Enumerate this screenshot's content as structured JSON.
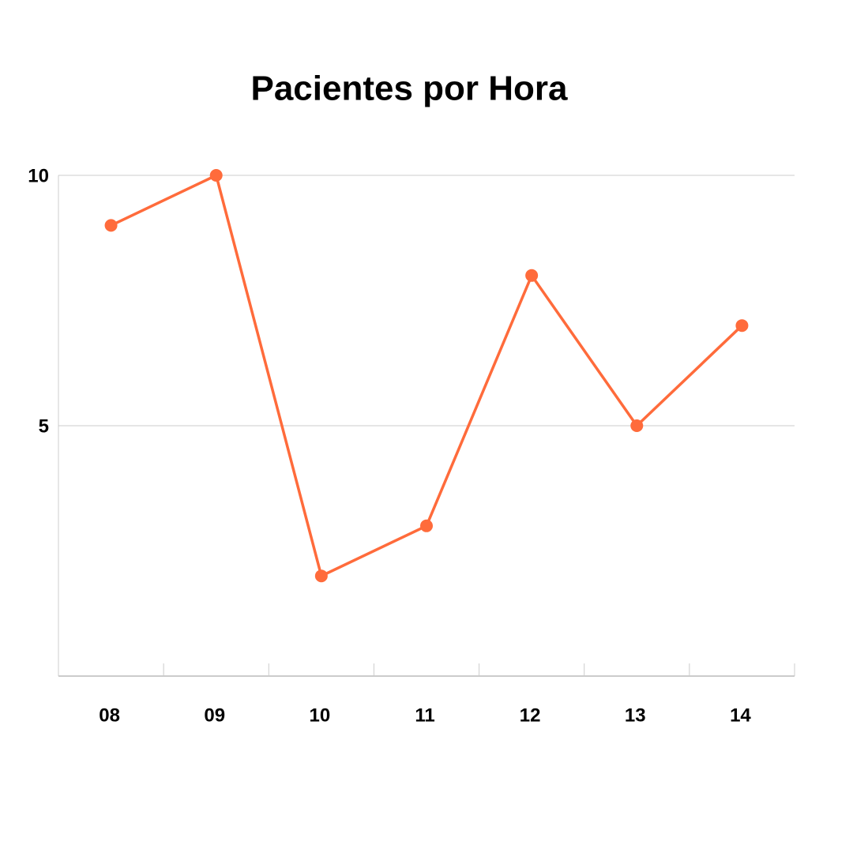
{
  "chart_data": {
    "type": "line",
    "title": "Pacientes por Hora",
    "categories": [
      "08",
      "09",
      "10",
      "11",
      "12",
      "13",
      "14"
    ],
    "series": [
      {
        "name": "Pacientes",
        "color": "#ff6b3b",
        "values": [
          9,
          10,
          2,
          3,
          8,
          5,
          7
        ]
      }
    ],
    "ylim": [
      0,
      10
    ],
    "yticks": [
      5,
      10
    ],
    "grid": true
  }
}
